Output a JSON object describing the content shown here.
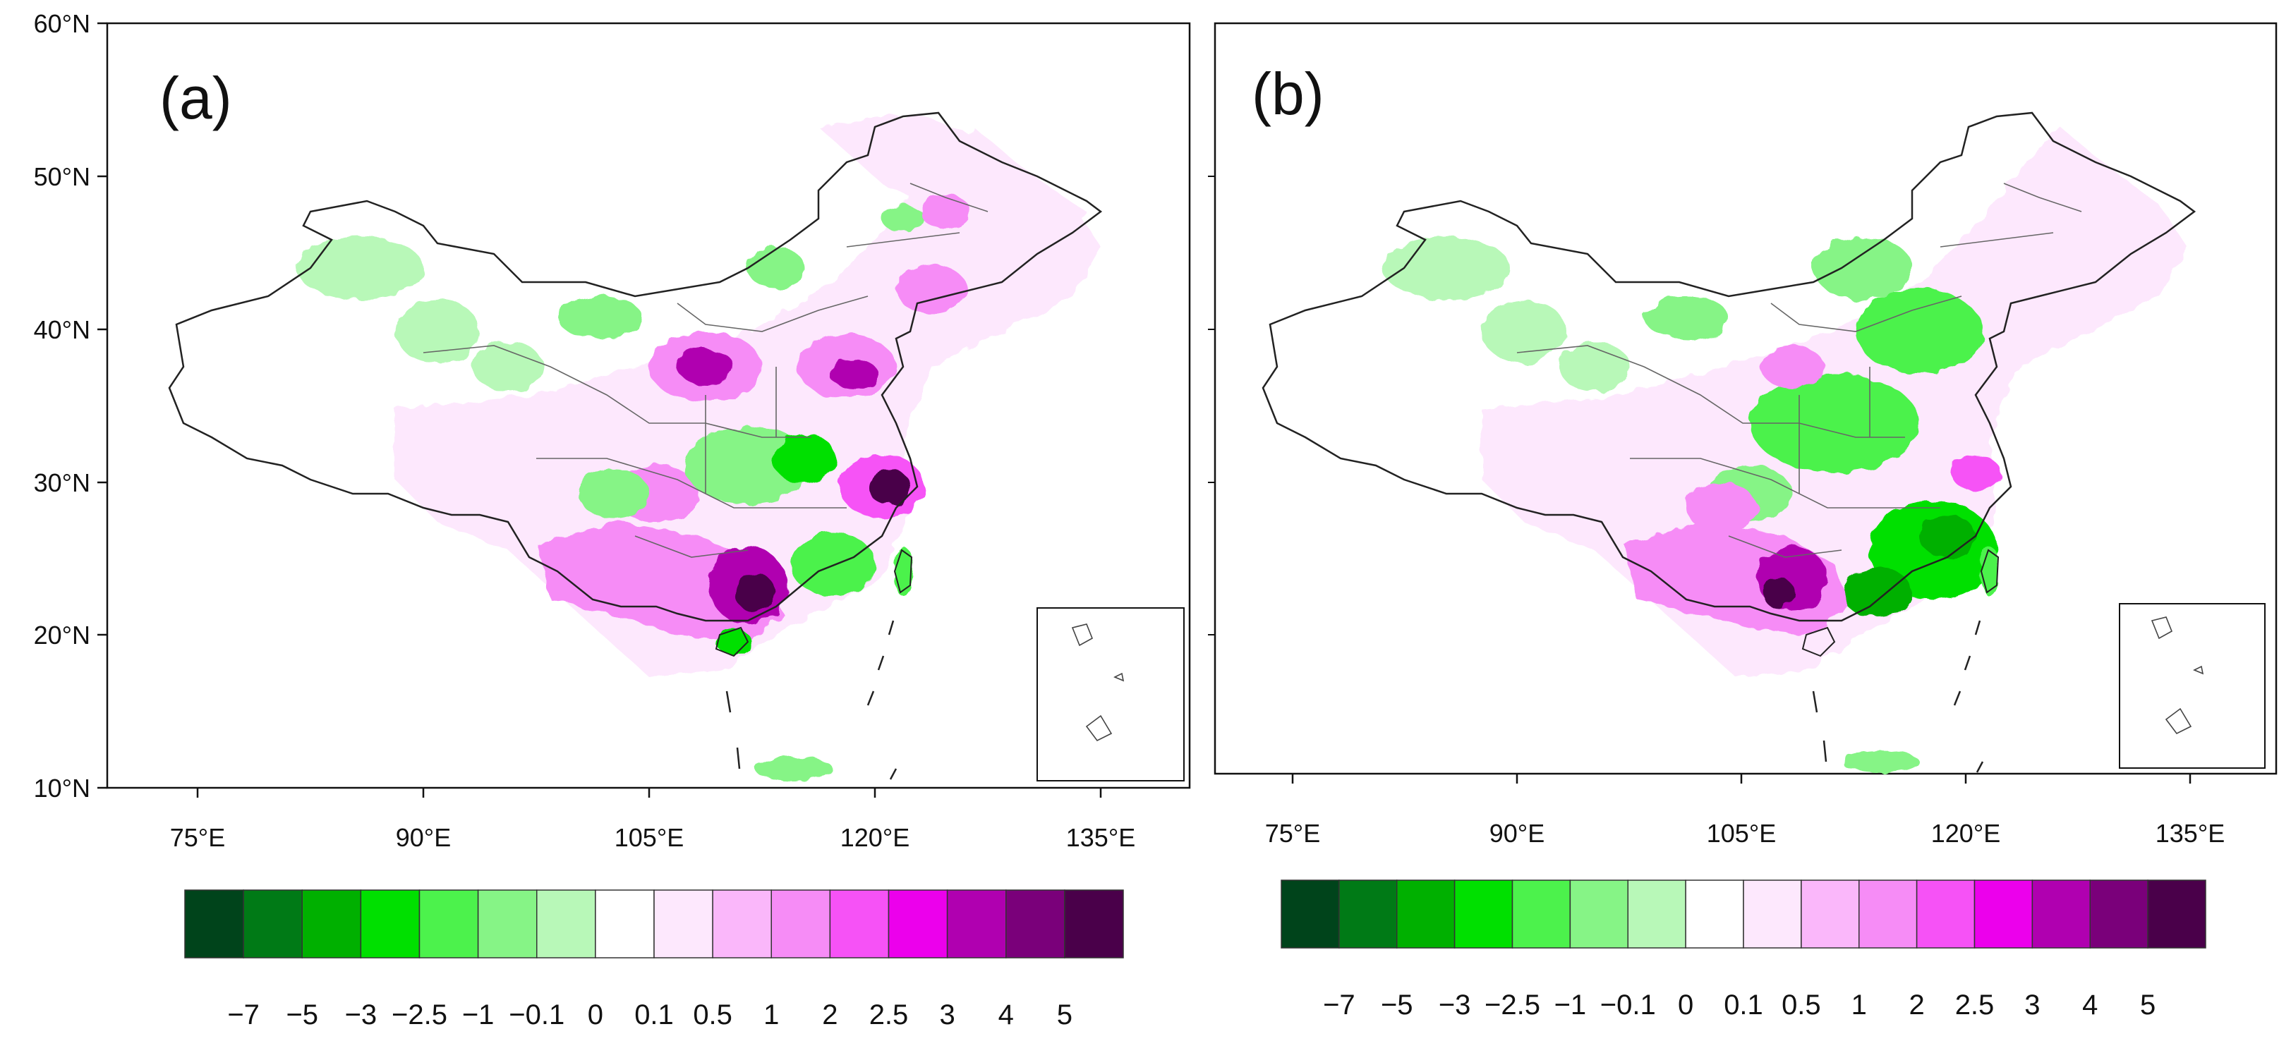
{
  "panels": [
    {
      "label": "(a)",
      "lat_ticks": [
        "60°N",
        "50°N",
        "40°N",
        "30°N",
        "20°N",
        "10°N"
      ],
      "lon_ticks": [
        "75°E",
        "90°E",
        "105°E",
        "120°E",
        "135°E"
      ]
    },
    {
      "label": "(b)",
      "lat_ticks": [],
      "lon_ticks": [
        "75°E",
        "90°E",
        "105°E",
        "120°E",
        "135°E"
      ]
    }
  ],
  "colorbar": {
    "colors": [
      "#00441b",
      "#007a16",
      "#00b000",
      "#00e000",
      "#4cf24c",
      "#86f486",
      "#b8f8b8",
      "#ffffff",
      "#fde8fd",
      "#fab7fa",
      "#f68cf6",
      "#f652f6",
      "#ec00ec",
      "#b000b0",
      "#7a007a",
      "#4a004a"
    ],
    "labels": [
      "−7",
      "−5",
      "−3",
      "−2.5",
      "−1",
      "−0.1",
      "0",
      "0.1",
      "0.5",
      "1",
      "2",
      "2.5",
      "3",
      "4",
      "5"
    ]
  },
  "legend_colors": {
    "green_mid": "#86f486",
    "green_dark": "#00b000",
    "pink_light": "#fde8fd",
    "pink_mid": "#f68cf6",
    "purple": "#b000b0",
    "dark_purple": "#4a004a"
  }
}
